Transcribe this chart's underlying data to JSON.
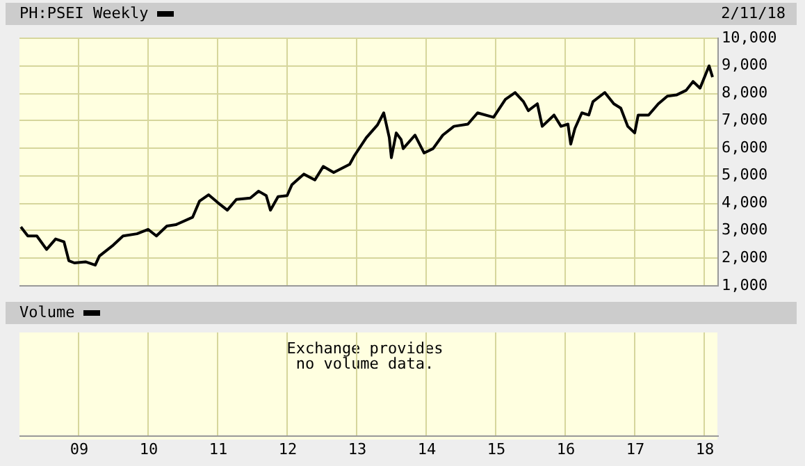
{
  "chart_data": [
    {
      "type": "line",
      "legend": "top left",
      "annotations": [
        "2/11/18"
      ],
      "x": [
        2008.16,
        2008.26,
        2008.39,
        2008.53,
        2008.66,
        2008.78,
        2008.85,
        2008.93,
        2009.09,
        2009.23,
        2009.29,
        2009.49,
        2009.63,
        2009.83,
        2009.99,
        2010.11,
        2010.26,
        2010.39,
        2010.63,
        2010.73,
        2010.86,
        2010.99,
        2011.13,
        2011.26,
        2011.46,
        2011.58,
        2011.69,
        2011.75,
        2011.86,
        2011.99,
        2012.06,
        2012.23,
        2012.39,
        2012.51,
        2012.66,
        2012.89,
        2012.96,
        2013.13,
        2013.29,
        2013.38,
        2013.46,
        2013.49,
        2013.56,
        2013.63,
        2013.66,
        2013.83,
        2013.96,
        2014.09,
        2014.23,
        2014.39,
        2014.59,
        2014.73,
        2014.96,
        2015.13,
        2015.27,
        2015.39,
        2015.46,
        2015.59,
        2015.66,
        2015.83,
        2015.93,
        2016.03,
        2016.07,
        2016.13,
        2016.23,
        2016.33,
        2016.39,
        2016.56,
        2016.69,
        2016.79,
        2016.89,
        2016.99,
        2017.04,
        2017.19,
        2017.33,
        2017.46,
        2017.59,
        2017.73,
        2017.83,
        2017.93,
        2018.06,
        2018.11
      ],
      "series": [
        {
          "name": "PH:PSEI Weekly",
          "color": "#000000",
          "values": [
            3140,
            2810,
            2810,
            2320,
            2700,
            2600,
            1910,
            1830,
            1870,
            1750,
            2080,
            2480,
            2810,
            2890,
            3050,
            2810,
            3170,
            3220,
            3490,
            4080,
            4310,
            4030,
            3750,
            4140,
            4190,
            4440,
            4280,
            3750,
            4240,
            4280,
            4680,
            5060,
            4850,
            5340,
            5120,
            5420,
            5740,
            6390,
            6850,
            7290,
            6390,
            5660,
            6560,
            6320,
            5990,
            6480,
            5830,
            5990,
            6480,
            6800,
            6880,
            7290,
            7130,
            7780,
            8030,
            7700,
            7370,
            7620,
            6800,
            7210,
            6800,
            6880,
            6150,
            6720,
            7290,
            7210,
            7700,
            8030,
            7620,
            7460,
            6800,
            6560,
            7210,
            7210,
            7620,
            7900,
            7940,
            8110,
            8430,
            8190,
            9000,
            8590
          ]
        }
      ],
      "xlim": [
        2008.14,
        2018.18
      ],
      "xticks": [
        {
          "value": 2009,
          "label": "09"
        },
        {
          "value": 2010,
          "label": "10"
        },
        {
          "value": 2011,
          "label": "11"
        },
        {
          "value": 2012,
          "label": "12"
        },
        {
          "value": 2013,
          "label": "13"
        },
        {
          "value": 2014,
          "label": "14"
        },
        {
          "value": 2015,
          "label": "15"
        },
        {
          "value": 2016,
          "label": "16"
        },
        {
          "value": 2017,
          "label": "17"
        },
        {
          "value": 2018,
          "label": "18"
        }
      ],
      "ylim": [
        1000,
        10000
      ],
      "yticks": [
        {
          "value": 1000,
          "label": "1,000"
        },
        {
          "value": 2000,
          "label": "2,000"
        },
        {
          "value": 3000,
          "label": "3,000"
        },
        {
          "value": 4000,
          "label": "4,000"
        },
        {
          "value": 5000,
          "label": "5,000"
        },
        {
          "value": 6000,
          "label": "6,000"
        },
        {
          "value": 7000,
          "label": "7,000"
        },
        {
          "value": 8000,
          "label": "8,000"
        },
        {
          "value": 9000,
          "label": "9,000"
        },
        {
          "value": 10000,
          "label": "10,000"
        }
      ],
      "tick_labels": "y",
      "grid": true,
      "line_style": "solid",
      "marker": "none"
    },
    {
      "type": "other",
      "title": "Volume",
      "annotations": [
        "Exchange provides no volume data."
      ]
    }
  ]
}
